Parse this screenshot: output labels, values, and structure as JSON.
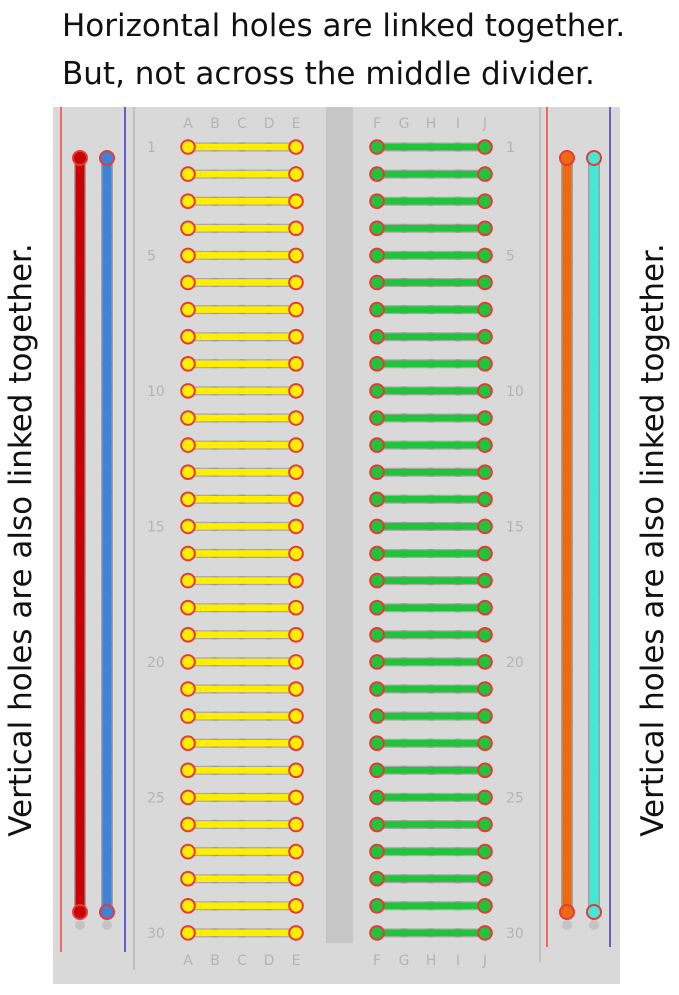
{
  "heading": {
    "line1": "Horizontal holes are linked together.",
    "line2": "But, not across the middle divider."
  },
  "side_labels": {
    "left": "Vertical holes are also linked together.",
    "right": "Vertical holes are also linked together."
  },
  "breadboard": {
    "columns_left": [
      "A",
      "B",
      "C",
      "D",
      "E"
    ],
    "columns_right": [
      "F",
      "G",
      "H",
      "I",
      "J"
    ],
    "row_count": 30,
    "row_numbers_shown": [
      "1",
      "5",
      "10",
      "15",
      "20",
      "25",
      "30"
    ],
    "colors": {
      "board": "#d9d9d9",
      "divider": "#c6c6c6",
      "hole": "#c4c4c4",
      "label_text": "#b4b4b4",
      "left_rows_wire": "#ffee00",
      "right_rows_wire": "#1fc43a",
      "rail_left_positive": "#cc0000",
      "rail_left_negative": "#3f83d8",
      "rail_right_positive": "#ee6a10",
      "rail_right_negative": "#44e8d4",
      "rail_line_red": "#ff2a2a",
      "rail_line_blue": "#2020d0",
      "endpoint_outline": "#e83838"
    }
  }
}
